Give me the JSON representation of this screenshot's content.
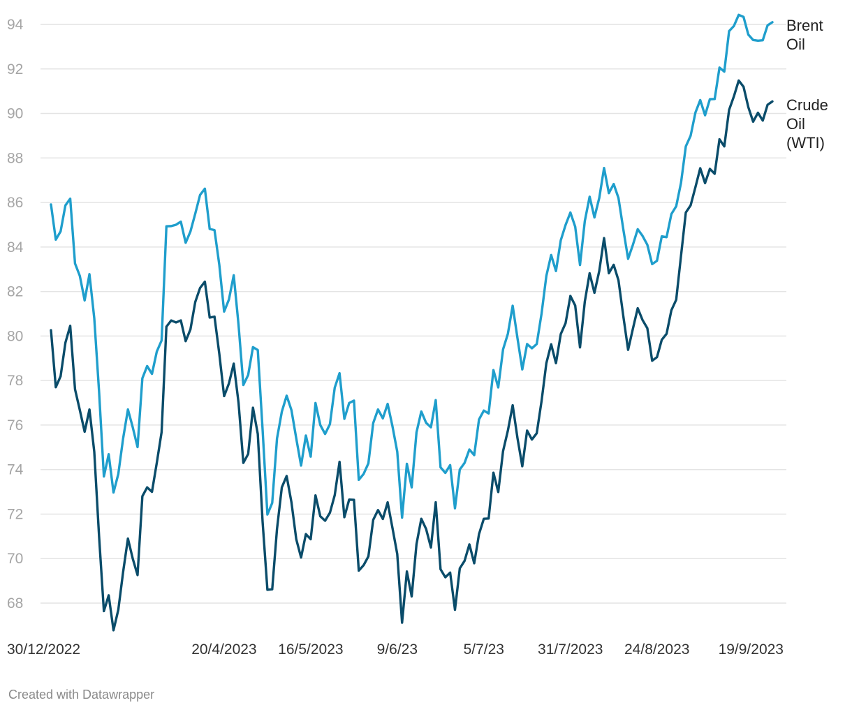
{
  "chart_data": {
    "type": "line",
    "title": "",
    "xlabel": "",
    "ylabel": "",
    "ylim": [
      66.8,
      94.6
    ],
    "y_ticks": [
      68,
      70,
      72,
      74,
      76,
      78,
      80,
      82,
      84,
      86,
      88,
      90,
      92,
      94
    ],
    "x_tick_labels": [
      "30/12/2022",
      "20/4/2023",
      "16/5/2023",
      "9/6/23",
      "5/7/23",
      "31/7/2023",
      "24/8/2023",
      "19/9/2023"
    ],
    "x_tick_indices": [
      0,
      36,
      54,
      72,
      90,
      108,
      126,
      144
    ],
    "grid": true,
    "legend_placement": "inline-right",
    "series": [
      {
        "name": "Brent Oil",
        "color": "#1f9ecc",
        "values": [
          85.91,
          84.33,
          84.7,
          85.87,
          86.17,
          83.26,
          82.7,
          81.6,
          82.78,
          80.8,
          77.5,
          73.69,
          74.69,
          72.97,
          73.8,
          75.4,
          76.7,
          75.9,
          75.01,
          78.1,
          78.65,
          78.3,
          79.3,
          79.8,
          84.93,
          84.94,
          85.0,
          85.14,
          84.19,
          84.7,
          85.5,
          86.34,
          86.62,
          84.81,
          84.76,
          83.2,
          81.1,
          81.64,
          82.73,
          80.5,
          77.8,
          78.25,
          79.5,
          79.37,
          75.8,
          71.98,
          72.5,
          75.4,
          76.6,
          77.32,
          76.67,
          75.4,
          74.18,
          75.53,
          74.58,
          76.99,
          76.0,
          75.6,
          76.04,
          77.68,
          78.33,
          76.28,
          76.99,
          77.1,
          73.54,
          73.8,
          74.28,
          76.09,
          76.7,
          76.3,
          76.95,
          75.95,
          74.8,
          71.84,
          74.26,
          73.2,
          75.67,
          76.61,
          76.1,
          75.9,
          77.12,
          74.1,
          73.85,
          74.2,
          72.26,
          74.0,
          74.3,
          74.9,
          74.65,
          76.25,
          76.65,
          76.52,
          78.47,
          77.69,
          79.4,
          80.1,
          81.36,
          79.9,
          78.5,
          79.64,
          79.45,
          79.64,
          81.0,
          82.7,
          83.64,
          82.92,
          84.3,
          84.99,
          85.55,
          84.91,
          83.19,
          85.17,
          86.26,
          85.33,
          86.2,
          87.55,
          86.42,
          86.83,
          86.2,
          84.8,
          83.47,
          84.1,
          84.8,
          84.5,
          84.1,
          83.23,
          83.38,
          84.48,
          84.44,
          85.48,
          85.83,
          86.88,
          88.52,
          89.0,
          90.04,
          90.6,
          89.92,
          90.64,
          90.65,
          92.06,
          91.88,
          93.7,
          93.93,
          94.43,
          94.34,
          93.54,
          93.3,
          93.27,
          93.29,
          93.96,
          94.1
        ]
      },
      {
        "name": "Crude Oil (WTI)",
        "color": "#0a4c6a",
        "values": [
          80.26,
          77.7,
          78.19,
          79.7,
          80.46,
          77.61,
          76.67,
          75.7,
          76.7,
          74.8,
          71.0,
          67.64,
          68.35,
          66.78,
          67.7,
          69.4,
          70.9,
          70.0,
          69.26,
          72.8,
          73.2,
          73.0,
          74.3,
          75.68,
          80.42,
          80.7,
          80.61,
          80.7,
          79.77,
          80.3,
          81.53,
          82.16,
          82.44,
          80.83,
          80.87,
          79.2,
          77.3,
          77.87,
          78.76,
          77.0,
          74.3,
          74.7,
          76.78,
          75.6,
          71.66,
          68.6,
          68.62,
          71.34,
          73.2,
          73.71,
          72.53,
          70.87,
          70.05,
          71.1,
          70.87,
          72.84,
          71.9,
          71.7,
          72.06,
          72.85,
          74.35,
          71.86,
          72.65,
          72.64,
          69.46,
          69.7,
          70.1,
          71.74,
          72.18,
          71.78,
          72.53,
          71.38,
          70.2,
          67.12,
          69.42,
          68.3,
          70.65,
          71.79,
          71.33,
          70.5,
          72.53,
          69.52,
          69.16,
          69.37,
          67.7,
          69.56,
          69.9,
          70.64,
          69.79,
          71.1,
          71.79,
          71.8,
          73.86,
          72.99,
          74.83,
          75.75,
          76.89,
          75.41,
          74.15,
          75.75,
          75.35,
          75.63,
          77.07,
          78.78,
          79.63,
          78.78,
          80.09,
          80.58,
          81.8,
          81.37,
          79.49,
          81.55,
          82.82,
          81.94,
          82.92,
          84.4,
          82.82,
          83.2,
          82.5,
          80.9,
          79.38,
          80.33,
          81.25,
          80.72,
          80.35,
          78.89,
          79.05,
          79.83,
          80.1,
          81.16,
          81.63,
          83.6,
          85.55,
          85.87,
          86.69,
          87.54,
          86.87,
          87.51,
          87.29,
          88.84,
          88.52,
          90.16,
          90.77,
          91.48,
          91.2,
          90.28,
          89.63,
          90.03,
          89.68,
          90.39,
          90.54
        ]
      }
    ]
  },
  "footer": "Created with Datawrapper",
  "labels": {
    "brent_line1": "Brent",
    "brent_line2": "Oil",
    "wti_line1": "Crude",
    "wti_line2": "Oil",
    "wti_line3": "(WTI)"
  }
}
